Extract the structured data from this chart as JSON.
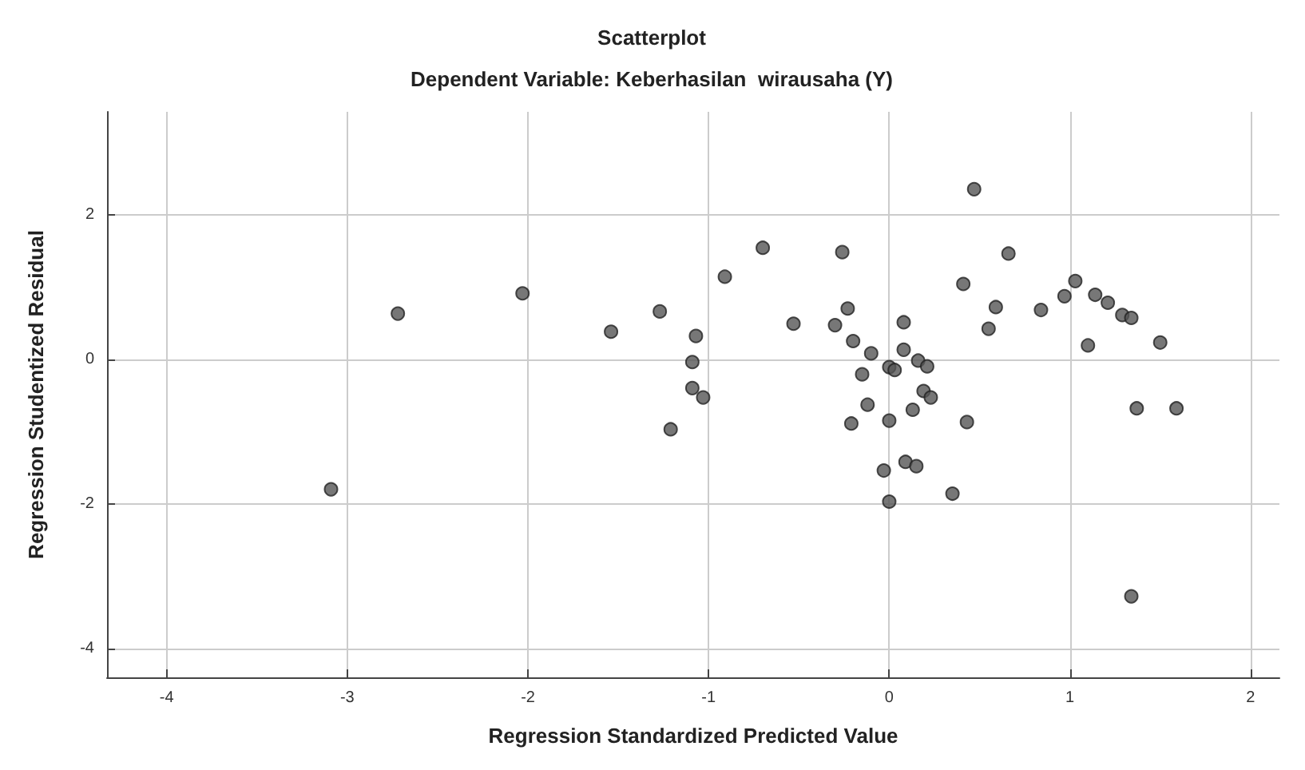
{
  "chart_data": {
    "type": "scatter",
    "title": "Scatterplot",
    "subtitle": "Dependent Variable: Keberhasilan  wirausaha (Y)",
    "xlabel": "Regression Standardized Predicted Value",
    "ylabel": "Regression Studentized Residual",
    "x": [
      -3.09,
      -2.72,
      -2.03,
      -1.54,
      -1.27,
      -1.07,
      -1.09,
      -1.09,
      -1.03,
      -1.21,
      -0.91,
      -0.7,
      -0.26,
      -0.23,
      -0.53,
      -0.3,
      -0.2,
      -0.1,
      0.08,
      0.08,
      0.0,
      0.03,
      0.16,
      0.21,
      -0.15,
      0.19,
      0.23,
      -0.12,
      0.13,
      -0.21,
      0.0,
      0.09,
      0.15,
      -0.03,
      0.0,
      0.35,
      0.47,
      0.66,
      0.41,
      0.59,
      0.55,
      0.84,
      0.97,
      1.03,
      1.14,
      1.21,
      1.29,
      1.34,
      1.5,
      1.1,
      1.37,
      1.59,
      0.43,
      1.34
    ],
    "values": [
      -1.8,
      0.63,
      0.91,
      0.38,
      0.66,
      0.32,
      -0.04,
      -0.4,
      -0.53,
      -0.97,
      1.14,
      1.54,
      1.48,
      0.7,
      0.49,
      0.47,
      0.25,
      0.08,
      0.51,
      0.13,
      -0.11,
      -0.15,
      -0.02,
      -0.1,
      -0.21,
      -0.44,
      -0.53,
      -0.63,
      -0.7,
      -0.89,
      -0.85,
      -1.42,
      -1.48,
      -1.54,
      -1.97,
      -1.86,
      2.35,
      1.46,
      1.04,
      0.72,
      0.42,
      0.68,
      0.87,
      1.08,
      0.89,
      0.78,
      0.61,
      0.57,
      0.23,
      0.19,
      -0.68,
      -0.68,
      -0.87,
      -3.28
    ],
    "color": "#555555",
    "marker": "circle",
    "grid": true,
    "xlim": [
      -4.33,
      2.16
    ],
    "xticks": [
      -4,
      -3,
      -2,
      -1,
      0,
      1,
      2
    ],
    "ylim": [
      -4.4,
      3.42
    ],
    "yticks": [
      -4,
      -2,
      0,
      2
    ]
  }
}
